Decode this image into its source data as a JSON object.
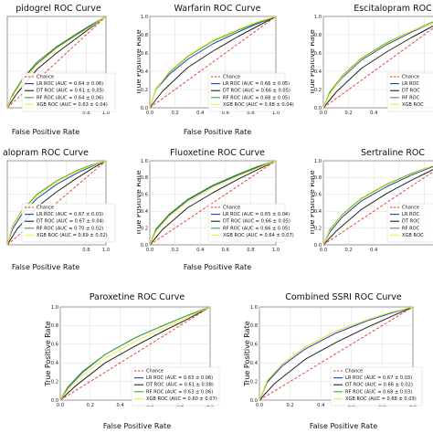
{
  "colors": {
    "chance": "#e8312b",
    "lr": "#1f3fb5",
    "dt": "#222222",
    "rf": "#3aa52e",
    "xgb": "#f0f03a",
    "grid": "#d9d9d9"
  },
  "chart_data": [
    {
      "type": "line",
      "title": "Clopidogrel ROC Curve",
      "title_shown": "pidogrel ROC Curve",
      "xlabel": "False Positive Rate",
      "ylabel": "",
      "xlim": [
        0,
        1
      ],
      "ylim": [
        0,
        1
      ],
      "xticks": [
        "0.8",
        "1.0"
      ],
      "yticks": [],
      "grid": true,
      "legend": "bottom-right",
      "series": [
        {
          "name": "Chance",
          "x": [
            0,
            1
          ],
          "y": [
            0,
            1
          ]
        },
        {
          "name": "LR ROC (AUC = 0.64 ± 0.06)",
          "x": [
            0,
            0.05,
            0.15,
            0.3,
            0.5,
            0.7,
            0.85,
            1
          ],
          "y": [
            0,
            0.13,
            0.3,
            0.48,
            0.66,
            0.8,
            0.9,
            1
          ]
        },
        {
          "name": "DT ROC (AUC = 0.61 ± 0.05)",
          "x": [
            0,
            0.1,
            0.3,
            0.5,
            0.7,
            0.85,
            1
          ],
          "y": [
            0,
            0.16,
            0.42,
            0.6,
            0.76,
            0.88,
            1
          ]
        },
        {
          "name": "RF ROC (AUC = 0.64 ± 0.06)",
          "x": [
            0,
            0.05,
            0.15,
            0.3,
            0.5,
            0.7,
            0.85,
            1
          ],
          "y": [
            0,
            0.14,
            0.31,
            0.5,
            0.67,
            0.81,
            0.91,
            1
          ]
        },
        {
          "name": "XGB ROC (AUC = 0.63 ± 0.04)",
          "x": [
            0,
            0.05,
            0.15,
            0.3,
            0.5,
            0.7,
            0.85,
            1
          ],
          "y": [
            0,
            0.12,
            0.29,
            0.47,
            0.65,
            0.79,
            0.89,
            1
          ]
        }
      ]
    },
    {
      "type": "line",
      "title": "Warfarin ROC Curve",
      "xlabel": "False Positive Rate",
      "ylabel": "True Positive Rate",
      "xlim": [
        0,
        1
      ],
      "ylim": [
        0,
        1
      ],
      "xticks": [
        "0.0",
        "0.2",
        "0.4",
        "0.6",
        "0.8",
        "1.0"
      ],
      "yticks": [
        "0.0",
        "0.2",
        "0.4",
        "0.6",
        "0.8",
        "1.0"
      ],
      "grid": true,
      "legend": "bottom-right",
      "series": [
        {
          "name": "Chance",
          "x": [
            0,
            1
          ],
          "y": [
            0,
            1
          ]
        },
        {
          "name": "LR ROC (AUC = 0.66 ± 0.05)",
          "x": [
            0,
            0.05,
            0.15,
            0.3,
            0.5,
            0.7,
            0.85,
            1
          ],
          "y": [
            0,
            0.2,
            0.36,
            0.53,
            0.7,
            0.83,
            0.92,
            1
          ]
        },
        {
          "name": "DT ROC (AUC = 0.66 ± 0.05)",
          "x": [
            0,
            0.1,
            0.3,
            0.5,
            0.7,
            0.85,
            1
          ],
          "y": [
            0,
            0.18,
            0.44,
            0.62,
            0.78,
            0.89,
            1
          ]
        },
        {
          "name": "RF ROC (AUC = 0.68 ± 0.05)",
          "x": [
            0,
            0.05,
            0.15,
            0.3,
            0.5,
            0.7,
            0.85,
            1
          ],
          "y": [
            0,
            0.21,
            0.38,
            0.56,
            0.73,
            0.85,
            0.93,
            1
          ]
        },
        {
          "name": "XGB ROC (AUC = 0.68 ± 0.04)",
          "x": [
            0,
            0.05,
            0.15,
            0.3,
            0.5,
            0.7,
            0.85,
            1
          ],
          "y": [
            0,
            0.2,
            0.39,
            0.57,
            0.74,
            0.86,
            0.94,
            1
          ]
        }
      ]
    },
    {
      "type": "line",
      "title": "Escitalopram ROC Curve",
      "title_shown": "Escitalopram ROC",
      "xlabel": "",
      "ylabel": "True Positive Rate",
      "xlim": [
        0,
        1
      ],
      "ylim": [
        0,
        1
      ],
      "xticks": [
        "0.0",
        "0.2",
        "0.4"
      ],
      "yticks": [
        "0.0",
        "0.2",
        "0.4",
        "0.6",
        "0.8",
        "1.0"
      ],
      "grid": true,
      "legend": "bottom-right",
      "series": [
        {
          "name": "Chance",
          "x": [
            0,
            1
          ],
          "y": [
            0,
            1
          ]
        },
        {
          "name": "LR ROC",
          "x": [
            0,
            0.05,
            0.15,
            0.3,
            0.5,
            0.7,
            0.85,
            1
          ],
          "y": [
            0,
            0.16,
            0.33,
            0.52,
            0.69,
            0.83,
            0.92,
            1
          ]
        },
        {
          "name": "DT ROC",
          "x": [
            0,
            0.1,
            0.3,
            0.5,
            0.7,
            0.85,
            1
          ],
          "y": [
            0,
            0.17,
            0.43,
            0.61,
            0.77,
            0.88,
            1
          ]
        },
        {
          "name": "RF ROC",
          "x": [
            0,
            0.05,
            0.15,
            0.3,
            0.5,
            0.7,
            0.85,
            1
          ],
          "y": [
            0,
            0.17,
            0.35,
            0.54,
            0.71,
            0.84,
            0.93,
            1
          ]
        },
        {
          "name": "XGB ROC",
          "x": [
            0,
            0.05,
            0.15,
            0.3,
            0.5,
            0.7,
            0.85,
            1
          ],
          "y": [
            0,
            0.15,
            0.34,
            0.53,
            0.7,
            0.84,
            0.92,
            1
          ]
        }
      ]
    },
    {
      "type": "line",
      "title": "Citalopram ROC Curve",
      "title_shown": "alopram ROC Curve",
      "xlabel": "False Positive Rate",
      "ylabel": "",
      "xlim": [
        0,
        1
      ],
      "ylim": [
        0,
        1
      ],
      "xticks": [
        "0.8",
        "1.0"
      ],
      "yticks": [],
      "grid": true,
      "legend": "bottom-right",
      "series": [
        {
          "name": "Chance",
          "x": [
            0,
            1
          ],
          "y": [
            0,
            1
          ]
        },
        {
          "name": "LR ROC (AUC = 0.67 ± 0.03)",
          "x": [
            0,
            0.05,
            0.15,
            0.3,
            0.5,
            0.7,
            0.85,
            1
          ],
          "y": [
            0,
            0.18,
            0.37,
            0.55,
            0.72,
            0.85,
            0.93,
            1
          ]
        },
        {
          "name": "DT ROC (AUC = 0.67 ± 0.04)",
          "x": [
            0,
            0.1,
            0.3,
            0.5,
            0.7,
            0.85,
            1
          ],
          "y": [
            0,
            0.19,
            0.45,
            0.63,
            0.79,
            0.9,
            1
          ]
        },
        {
          "name": "RF ROC (AUC = 0.70 ± 0.02)",
          "x": [
            0,
            0.05,
            0.15,
            0.3,
            0.5,
            0.7,
            0.85,
            1
          ],
          "y": [
            0,
            0.22,
            0.41,
            0.6,
            0.76,
            0.88,
            0.95,
            1
          ]
        },
        {
          "name": "XGB ROC (AUC = 0.69 ± 0.02)",
          "x": [
            0,
            0.05,
            0.15,
            0.3,
            0.5,
            0.7,
            0.85,
            1
          ],
          "y": [
            0,
            0.21,
            0.4,
            0.58,
            0.75,
            0.87,
            0.94,
            1
          ]
        }
      ]
    },
    {
      "type": "line",
      "title": "Fluoxetine ROC Curve",
      "xlabel": "False Positive Rate",
      "ylabel": "True Positive Rate",
      "xlim": [
        0,
        1
      ],
      "ylim": [
        0,
        1
      ],
      "xticks": [
        "0.0",
        "0.2",
        "0.4",
        "0.6",
        "0.8",
        "1.0"
      ],
      "yticks": [
        "0.0",
        "0.2",
        "0.4",
        "0.6",
        "0.8",
        "1.0"
      ],
      "grid": true,
      "legend": "bottom-right",
      "series": [
        {
          "name": "Chance",
          "x": [
            0,
            1
          ],
          "y": [
            0,
            1
          ]
        },
        {
          "name": "LR ROC (AUC = 0.65 ± 0.04)",
          "x": [
            0,
            0.05,
            0.15,
            0.3,
            0.5,
            0.7,
            0.85,
            1
          ],
          "y": [
            0,
            0.18,
            0.35,
            0.53,
            0.7,
            0.83,
            0.92,
            1
          ]
        },
        {
          "name": "DT ROC (AUC = 0.66 ± 0.05)",
          "x": [
            0,
            0.1,
            0.3,
            0.5,
            0.7,
            0.85,
            1
          ],
          "y": [
            0,
            0.18,
            0.44,
            0.62,
            0.78,
            0.89,
            1
          ]
        },
        {
          "name": "RF ROC (AUC = 0.66 ± 0.05)",
          "x": [
            0,
            0.05,
            0.15,
            0.3,
            0.5,
            0.7,
            0.85,
            1
          ],
          "y": [
            0,
            0.19,
            0.36,
            0.54,
            0.71,
            0.84,
            0.93,
            1
          ]
        },
        {
          "name": "XGB ROC (AUC = 0.64 ± 0.07)",
          "x": [
            0,
            0.05,
            0.15,
            0.3,
            0.5,
            0.7,
            0.85,
            1
          ],
          "y": [
            0,
            0.16,
            0.33,
            0.51,
            0.68,
            0.82,
            0.91,
            1
          ]
        }
      ]
    },
    {
      "type": "line",
      "title": "Sertraline ROC Curve",
      "title_shown": "Sertraline ROC",
      "xlabel": "",
      "ylabel": "True Positive Rate",
      "xlim": [
        0,
        1
      ],
      "ylim": [
        0,
        1
      ],
      "xticks": [
        "0.0",
        "0.2",
        "0.4"
      ],
      "yticks": [
        "0.0",
        "0.2",
        "0.4",
        "0.6",
        "0.8",
        "1.0"
      ],
      "grid": true,
      "legend": "bottom-right",
      "series": [
        {
          "name": "Chance",
          "x": [
            0,
            1
          ],
          "y": [
            0,
            1
          ]
        },
        {
          "name": "LR ROC",
          "x": [
            0,
            0.05,
            0.15,
            0.3,
            0.5,
            0.7,
            0.85,
            1
          ],
          "y": [
            0,
            0.15,
            0.33,
            0.52,
            0.69,
            0.83,
            0.92,
            1
          ]
        },
        {
          "name": "DT ROC",
          "x": [
            0,
            0.1,
            0.3,
            0.5,
            0.7,
            0.85,
            1
          ],
          "y": [
            0,
            0.16,
            0.42,
            0.61,
            0.77,
            0.88,
            1
          ]
        },
        {
          "name": "RF ROC",
          "x": [
            0,
            0.05,
            0.15,
            0.3,
            0.5,
            0.7,
            0.85,
            1
          ],
          "y": [
            0,
            0.18,
            0.36,
            0.55,
            0.72,
            0.85,
            0.93,
            1
          ]
        },
        {
          "name": "XGB ROC",
          "x": [
            0,
            0.05,
            0.15,
            0.3,
            0.5,
            0.7,
            0.85,
            1
          ],
          "y": [
            0,
            0.17,
            0.35,
            0.54,
            0.71,
            0.84,
            0.93,
            1
          ]
        }
      ]
    },
    {
      "type": "line",
      "title": "Paroxetine ROC Curve",
      "xlabel": "False Positive Rate",
      "ylabel": "True Positive Rate",
      "xlim": [
        0,
        1
      ],
      "ylim": [
        0,
        1
      ],
      "xticks": [
        "0.0",
        "0.2",
        "0.4",
        "0.6",
        "0.8",
        "1.0"
      ],
      "yticks": [
        "0.0",
        "0.2",
        "0.4",
        "0.6",
        "0.8",
        "1.0"
      ],
      "grid": true,
      "legend": "bottom-right",
      "series": [
        {
          "name": "Chance",
          "x": [
            0,
            1
          ],
          "y": [
            0,
            1
          ]
        },
        {
          "name": "LR ROC (AUC = 0.63 ± 0.06)",
          "x": [
            0,
            0.05,
            0.15,
            0.3,
            0.5,
            0.7,
            0.85,
            1
          ],
          "y": [
            0,
            0.13,
            0.3,
            0.49,
            0.67,
            0.81,
            0.91,
            1
          ]
        },
        {
          "name": "DT ROC (AUC = 0.61 ± 0.08)",
          "x": [
            0,
            0.1,
            0.3,
            0.5,
            0.7,
            0.85,
            1
          ],
          "y": [
            0,
            0.15,
            0.4,
            0.58,
            0.75,
            0.87,
            1
          ]
        },
        {
          "name": "RF ROC (AUC = 0.63 ± 0.06)",
          "x": [
            0,
            0.05,
            0.15,
            0.3,
            0.5,
            0.7,
            0.85,
            1
          ],
          "y": [
            0,
            0.14,
            0.31,
            0.49,
            0.67,
            0.81,
            0.91,
            1
          ]
        },
        {
          "name": "XGB ROC (AUC = 0.60 ± 0.07)",
          "x": [
            0,
            0.05,
            0.15,
            0.3,
            0.5,
            0.7,
            0.85,
            1
          ],
          "y": [
            0,
            0.11,
            0.27,
            0.45,
            0.63,
            0.78,
            0.89,
            1
          ]
        }
      ]
    },
    {
      "type": "line",
      "title": "Combined SSRI ROC Curve",
      "xlabel": "False Positive Rate",
      "ylabel": "True Positive Rate",
      "xlim": [
        0,
        1
      ],
      "ylim": [
        0,
        1
      ],
      "xticks": [
        "0.0",
        "0.2",
        "0.4",
        "0.6",
        "0.8",
        "1.0"
      ],
      "yticks": [
        "0.0",
        "0.2",
        "0.4",
        "0.6",
        "0.8",
        "1.0"
      ],
      "grid": true,
      "legend": "bottom-right",
      "series": [
        {
          "name": "Chance",
          "x": [
            0,
            1
          ],
          "y": [
            0,
            1
          ]
        },
        {
          "name": "LR ROC (AUC = 0.67 ± 0.03)",
          "x": [
            0,
            0.05,
            0.15,
            0.3,
            0.5,
            0.7,
            0.85,
            1
          ],
          "y": [
            0,
            0.19,
            0.37,
            0.55,
            0.72,
            0.85,
            0.93,
            1
          ]
        },
        {
          "name": "DT ROC (AUC = 0.66 ± 0.02)",
          "x": [
            0,
            0.1,
            0.3,
            0.5,
            0.7,
            0.85,
            1
          ],
          "y": [
            0,
            0.18,
            0.44,
            0.62,
            0.78,
            0.89,
            1
          ]
        },
        {
          "name": "RF ROC (AUC = 0.68 ± 0.03)",
          "x": [
            0,
            0.05,
            0.15,
            0.3,
            0.5,
            0.7,
            0.85,
            1
          ],
          "y": [
            0,
            0.2,
            0.39,
            0.57,
            0.74,
            0.86,
            0.94,
            1
          ]
        },
        {
          "name": "XGB ROC (AUC = 0.68 ± 0.03)",
          "x": [
            0,
            0.05,
            0.15,
            0.3,
            0.5,
            0.7,
            0.85,
            1
          ],
          "y": [
            0,
            0.21,
            0.39,
            0.57,
            0.74,
            0.86,
            0.94,
            1
          ]
        }
      ]
    }
  ]
}
